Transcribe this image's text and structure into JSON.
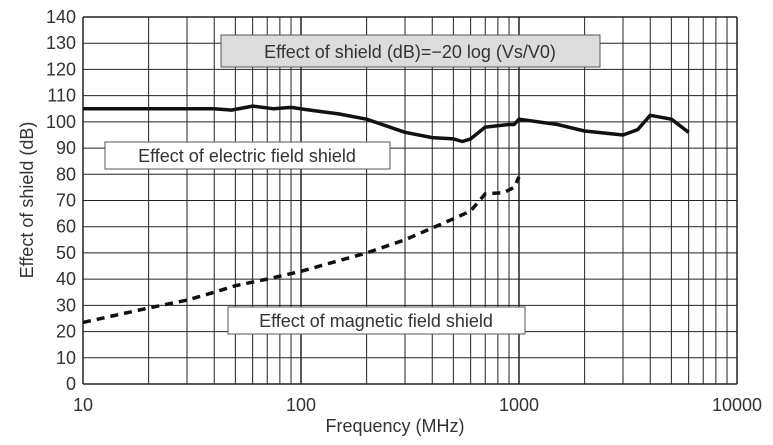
{
  "chart_data": {
    "type": "line",
    "title": "",
    "xlabel": "Frequency (MHz)",
    "ylabel": "Effect of shield (dB)",
    "xscale": "log",
    "xlim": [
      10,
      10000
    ],
    "ylim": [
      0,
      140
    ],
    "grid": true,
    "x_ticks": [
      "10",
      "100",
      "1000",
      "10000"
    ],
    "y_ticks": [
      "0",
      "10",
      "20",
      "30",
      "40",
      "50",
      "60",
      "70",
      "80",
      "90",
      "100",
      "110",
      "120",
      "130",
      "140"
    ],
    "formula_annotation": "Effect of shield (dB)=−20 log (Vs/V0)",
    "series": [
      {
        "name": "Effect of electric field shield",
        "style": "solid",
        "color": "#111111",
        "x": [
          10,
          20,
          40,
          48,
          60,
          75,
          90,
          110,
          150,
          200,
          300,
          400,
          500,
          550,
          600,
          700,
          900,
          950,
          1000,
          1500,
          2000,
          3000,
          3500,
          4000,
          5000,
          6000
        ],
        "y": [
          105,
          105,
          105,
          104.5,
          106,
          105,
          105.5,
          104.5,
          103,
          101,
          96,
          94,
          93.5,
          92.5,
          93.5,
          98,
          99,
          99,
          101,
          99,
          96.5,
          95,
          97,
          102.5,
          101,
          96
        ]
      },
      {
        "name": "Effect of magnetic field shield",
        "style": "dashed",
        "color": "#111111",
        "x": [
          10,
          20,
          30,
          40,
          50,
          70,
          100,
          200,
          300,
          500,
          600,
          700,
          850,
          950,
          1000
        ],
        "y": [
          23.5,
          29,
          32,
          35,
          37.5,
          40,
          43,
          50,
          55,
          63,
          66,
          72.5,
          73,
          75,
          79
        ]
      }
    ]
  }
}
